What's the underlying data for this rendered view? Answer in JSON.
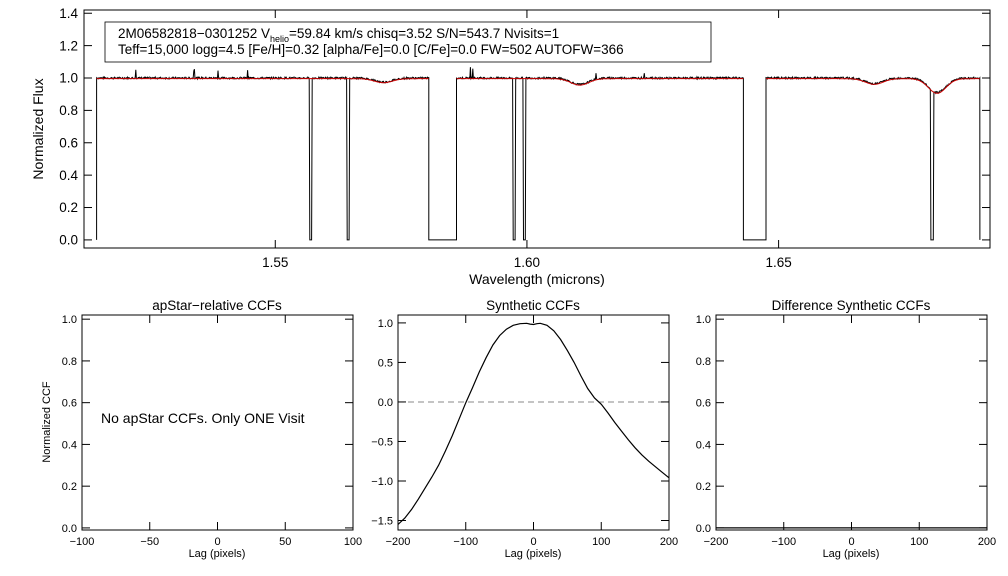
{
  "chart_data": [
    {
      "type": "line",
      "panel": "spectrum",
      "header_line1_prefix": "2M06582818−0301252  V",
      "header_line1_sub": "helio",
      "header_line1_suffix": "=59.84 km/s  chisq=3.52  S/N=543.7  Nvisits=1",
      "header_line2": "Teff=15,000 logg=4.5 [Fe/H]=0.32 [alpha/Fe]=0.0 [C/Fe]=0.0 FW=502 AUTOFW=366",
      "xlabel": "Wavelength (microns)",
      "ylabel": "Normalized Flux",
      "xlim": [
        1.512,
        1.692
      ],
      "ylim": [
        -0.05,
        1.42
      ],
      "xticks": [
        1.55,
        1.6,
        1.65
      ],
      "xtick_labels": [
        "1.55",
        "1.60",
        "1.65"
      ],
      "yticks": [
        0.0,
        0.2,
        0.4,
        0.6,
        0.8,
        1.0,
        1.2,
        1.4
      ],
      "ytick_labels": [
        "0.0",
        "0.2",
        "0.4",
        "0.6",
        "0.8",
        "1.0",
        "1.2",
        "1.4"
      ],
      "chips": [
        [
          1.5145,
          1.5805
        ],
        [
          1.586,
          1.643
        ],
        [
          1.6475,
          1.69
        ]
      ],
      "dropouts": [
        1.557,
        1.5645,
        1.5975,
        1.5995,
        1.6805
      ],
      "dips": [
        {
          "x": 1.5715,
          "depth": 0.025
        },
        {
          "x": 1.6105,
          "depth": 0.04
        },
        {
          "x": 1.669,
          "depth": 0.035
        },
        {
          "x": 1.6815,
          "depth": 0.09
        }
      ],
      "series": [
        {
          "role": "observed",
          "color": "#000000"
        },
        {
          "role": "model",
          "color": "#cc0000"
        }
      ]
    },
    {
      "type": "line",
      "panel": "apstar-ccf",
      "title": "apStar−relative CCFs",
      "xlabel": "Lag (pixels)",
      "ylabel": "Normalized CCF",
      "xlim": [
        -100,
        100
      ],
      "ylim": [
        -0.01,
        1.02
      ],
      "xticks": [
        -100,
        -50,
        0,
        50,
        100
      ],
      "xtick_labels": [
        "−100",
        "−50",
        "0",
        "50",
        "100"
      ],
      "yticks": [
        0.0,
        0.2,
        0.4,
        0.6,
        0.8,
        1.0
      ],
      "ytick_labels": [
        "0.0",
        "0.2",
        "0.4",
        "0.6",
        "0.8",
        "1.0"
      ],
      "annotation": "No apStar CCFs.  Only ONE Visit"
    },
    {
      "type": "line",
      "panel": "synthetic-ccf",
      "title": "Synthetic CCFs",
      "xlabel": "Lag (pixels)",
      "xlim": [
        -200,
        200
      ],
      "ylim": [
        -1.62,
        1.1
      ],
      "xticks": [
        -200,
        -100,
        0,
        100,
        200
      ],
      "xtick_labels": [
        "−200",
        "−100",
        "0",
        "100",
        "200"
      ],
      "yticks": [
        -1.5,
        -1.0,
        -0.5,
        0.0,
        0.5,
        1.0
      ],
      "ytick_labels": [
        "−1.5",
        "−1.0",
        "−0.5",
        "0.0",
        "0.5",
        "1.0"
      ],
      "zero_line": 0.0,
      "series": [
        {
          "x": [
            -200,
            -190,
            -180,
            -170,
            -160,
            -150,
            -140,
            -130,
            -120,
            -110,
            -100,
            -90,
            -80,
            -70,
            -60,
            -50,
            -40,
            -30,
            -20,
            -10,
            -5,
            0,
            5,
            10,
            20,
            30,
            40,
            50,
            60,
            70,
            80,
            90,
            100,
            110,
            120,
            130,
            140,
            150,
            160,
            170,
            180,
            190,
            200
          ],
          "y": [
            -1.55,
            -1.47,
            -1.36,
            -1.23,
            -1.09,
            -0.95,
            -0.8,
            -0.62,
            -0.43,
            -0.22,
            -0.01,
            0.18,
            0.38,
            0.56,
            0.72,
            0.84,
            0.92,
            0.97,
            0.99,
            0.995,
            0.985,
            0.98,
            0.99,
            0.995,
            0.97,
            0.9,
            0.79,
            0.65,
            0.5,
            0.33,
            0.17,
            0.05,
            -0.03,
            -0.14,
            -0.26,
            -0.37,
            -0.48,
            -0.58,
            -0.67,
            -0.75,
            -0.82,
            -0.89,
            -0.96
          ]
        }
      ]
    },
    {
      "type": "line",
      "panel": "difference-ccf",
      "title": "Difference Synthetic CCFs",
      "xlabel": "Lag (pixels)",
      "xlim": [
        -200,
        200
      ],
      "ylim": [
        -0.01,
        1.02
      ],
      "xticks": [
        -200,
        -100,
        0,
        100,
        200
      ],
      "xtick_labels": [
        "−200",
        "−100",
        "0",
        "100",
        "200"
      ],
      "yticks": [
        0.0,
        0.2,
        0.4,
        0.6,
        0.8,
        1.0
      ],
      "ytick_labels": [
        "0.0",
        "0.2",
        "0.4",
        "0.6",
        "0.8",
        "1.0"
      ],
      "series": [
        {
          "x": [
            -200,
            200
          ],
          "y": [
            0.0,
            0.0
          ]
        }
      ]
    }
  ]
}
